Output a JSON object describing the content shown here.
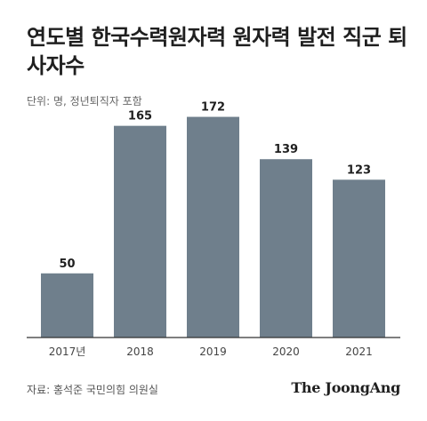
{
  "header": {
    "title": "연도별 한국수력원자력 원자력 발전 직군 퇴사자수",
    "unit_note": "단위: 명, 정년퇴직자 포함"
  },
  "footer": {
    "source": "자료: 홍석준 국민의힘 의원실",
    "brand": "The JoongAng"
  },
  "colors": {
    "bar": "#6f7f8c",
    "axis": "#333333",
    "text": "#1f1f1f",
    "tick": "#444444"
  },
  "chart_data": {
    "type": "bar",
    "title": "연도별 한국수력원자력 원자력 발전 직군 퇴사자수",
    "subtitle": "단위: 명, 정년퇴직자 포함",
    "categories": [
      "2017년",
      "2018",
      "2019",
      "2020",
      "2021"
    ],
    "values": [
      50,
      165,
      172,
      139,
      123
    ],
    "xlabel": "",
    "ylabel": "",
    "ylim": [
      0,
      180
    ],
    "grid": false,
    "legend": "none",
    "data_labels": true
  }
}
